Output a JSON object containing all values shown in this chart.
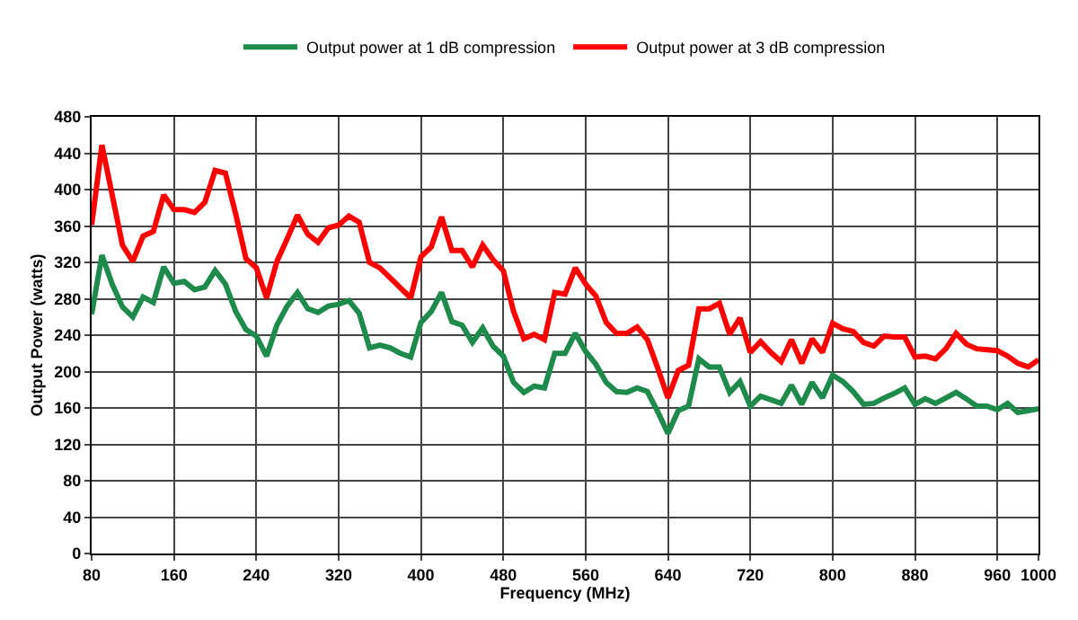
{
  "chart_data": {
    "type": "line",
    "xlabel": "Frequency (MHz)",
    "ylabel": "Output Power (watts)",
    "x": [
      80,
      90,
      100,
      110,
      120,
      130,
      140,
      150,
      160,
      170,
      180,
      190,
      200,
      210,
      220,
      230,
      240,
      250,
      260,
      270,
      280,
      290,
      300,
      310,
      320,
      330,
      340,
      350,
      360,
      370,
      380,
      390,
      400,
      410,
      420,
      430,
      440,
      450,
      460,
      470,
      480,
      490,
      500,
      510,
      520,
      530,
      540,
      550,
      560,
      570,
      580,
      590,
      600,
      610,
      620,
      630,
      640,
      650,
      660,
      670,
      680,
      690,
      700,
      710,
      720,
      730,
      740,
      750,
      760,
      770,
      780,
      790,
      800,
      810,
      820,
      830,
      840,
      850,
      860,
      870,
      880,
      890,
      900,
      910,
      920,
      930,
      940,
      950,
      960,
      970,
      980,
      990,
      1000
    ],
    "series": [
      {
        "name": "Output power at 1 dB compression",
        "color": "#1e8a4c",
        "values": [
          263,
          328,
          296,
          271,
          260,
          282,
          276,
          315,
          297,
          299,
          290,
          293,
          311,
          296,
          266,
          246,
          239,
          217,
          251,
          272,
          287,
          269,
          265,
          272,
          274,
          278,
          264,
          226,
          229,
          226,
          220,
          216,
          254,
          266,
          287,
          255,
          251,
          232,
          248,
          228,
          217,
          188,
          177,
          184,
          182,
          220,
          220,
          242,
          222,
          208,
          188,
          178,
          177,
          182,
          178,
          156,
          132,
          157,
          162,
          214,
          205,
          205,
          177,
          189,
          162,
          173,
          169,
          165,
          185,
          164,
          188,
          171,
          196,
          189,
          178,
          164,
          165,
          171,
          176,
          182,
          164,
          170,
          165,
          171,
          177,
          170,
          162,
          162,
          158,
          165,
          155,
          157,
          159
        ]
      },
      {
        "name": "Output power at 3 dB compression",
        "color": "#ff0000",
        "values": [
          361,
          449,
          394,
          339,
          321,
          349,
          354,
          394,
          378,
          378,
          375,
          386,
          421,
          418,
          373,
          324,
          314,
          281,
          321,
          346,
          372,
          351,
          342,
          358,
          361,
          371,
          364,
          320,
          314,
          303,
          292,
          281,
          326,
          337,
          370,
          333,
          333,
          315,
          339,
          323,
          311,
          266,
          236,
          241,
          235,
          287,
          285,
          314,
          296,
          283,
          254,
          242,
          242,
          249,
          235,
          204,
          171,
          201,
          207,
          269,
          269,
          275,
          241,
          259,
          221,
          233,
          221,
          211,
          235,
          209,
          236,
          221,
          253,
          247,
          244,
          232,
          228,
          239,
          238,
          238,
          216,
          217,
          214,
          225,
          242,
          230,
          225,
          224,
          223,
          217,
          209,
          205,
          213
        ]
      }
    ],
    "xlim": [
      80,
      1000
    ],
    "xticks": [
      80,
      160,
      240,
      320,
      400,
      480,
      560,
      640,
      720,
      800,
      880,
      960,
      1000
    ],
    "ylim": [
      0,
      480
    ],
    "yticks": [
      0,
      40,
      80,
      120,
      160,
      200,
      240,
      280,
      320,
      360,
      400,
      440,
      480
    ],
    "grid": true,
    "legend": "top",
    "marker": "none",
    "line_style": "solid"
  }
}
